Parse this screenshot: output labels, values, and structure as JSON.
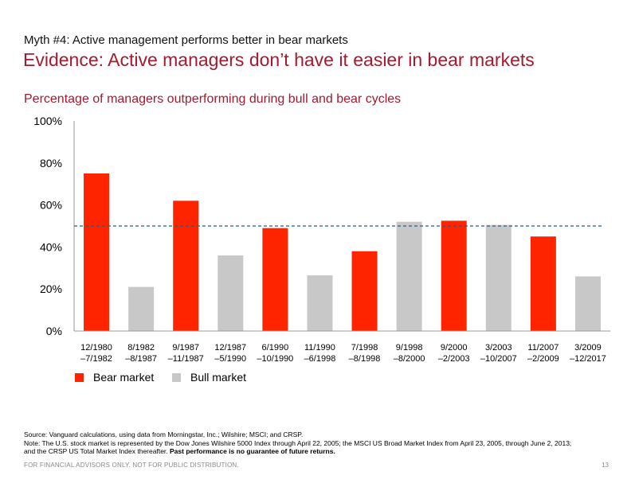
{
  "header": {
    "kicker": "Myth #4: Active management performs better in bear markets",
    "title": "Evidence: Active managers don’t have it easier in bear markets"
  },
  "colors": {
    "accent": "#a6192e",
    "bear": "#ff2400",
    "bull": "#c8c8c8",
    "reference_line": "#1f5e8a"
  },
  "chart_data": {
    "type": "bar",
    "title": "Percentage of managers outperforming during bull and bear cycles",
    "xlabel": "",
    "ylabel": "",
    "ylim": [
      0,
      100
    ],
    "yticks": [
      0,
      20,
      40,
      60,
      80,
      100
    ],
    "ytick_labels": [
      "0%",
      "20%",
      "40%",
      "60%",
      "80%",
      "100%"
    ],
    "categories": [
      [
        "12/1980",
        "–7/1982"
      ],
      [
        "8/1982",
        "–8/1987"
      ],
      [
        "9/1987",
        "–11/1987"
      ],
      [
        "12/1987",
        "–5/1990"
      ],
      [
        "6/1990",
        "–10/1990"
      ],
      [
        "11/1990",
        "–6/1998"
      ],
      [
        "7/1998",
        "–8/1998"
      ],
      [
        "9/1998",
        "–8/2000"
      ],
      [
        "9/2000",
        "–2/2003"
      ],
      [
        "3/2003",
        "–10/2007"
      ],
      [
        "11/2007",
        "–2/2009"
      ],
      [
        "3/2009",
        "–12/2017"
      ]
    ],
    "values": [
      75,
      21,
      62,
      36,
      49,
      26.5,
      38,
      52,
      52.5,
      50.5,
      45,
      26
    ],
    "market": [
      "bear",
      "bull",
      "bear",
      "bull",
      "bear",
      "bull",
      "bear",
      "bull",
      "bear",
      "bull",
      "bear",
      "bull"
    ],
    "reference_line": 50,
    "legend": [
      {
        "key": "bear",
        "label": "Bear market"
      },
      {
        "key": "bull",
        "label": "Bull market"
      }
    ],
    "legend_position": "bottom-left",
    "grid": false
  },
  "footnotes": {
    "line1": "Source: Vanguard calculations, using data from Morningstar, Inc.; Wilshire; MSCI; and CRSP.",
    "line2": "Note: The U.S. stock market is represented by the Dow Jones Wilshire 5000 Index through April 22, 2005; the MSCI US Broad Market Index from April 23, 2005, through June 2, 2013;",
    "line3": "and the CRSP US Total Market Index thereafter. ",
    "line3_bold": "Past performance is no guarantee of future returns."
  },
  "footer": {
    "disclaimer": "FOR FINANCIAL ADVISORS ONLY. NOT FOR PUBLIC DISTRIBUTION.",
    "page_number": "13"
  }
}
